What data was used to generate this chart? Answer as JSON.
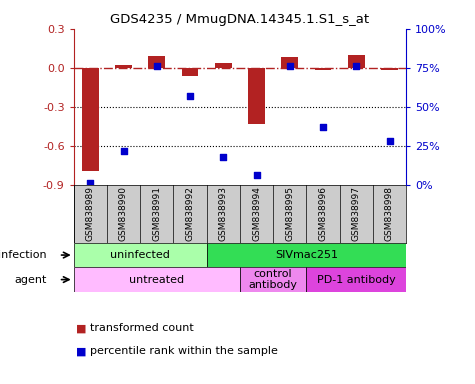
{
  "title": "GDS4235 / MmugDNA.14345.1.S1_s_at",
  "samples": [
    "GSM838989",
    "GSM838990",
    "GSM838991",
    "GSM838992",
    "GSM838993",
    "GSM838994",
    "GSM838995",
    "GSM838996",
    "GSM838997",
    "GSM838998"
  ],
  "transformed_count": [
    -0.79,
    0.02,
    0.09,
    -0.06,
    0.04,
    -0.43,
    0.08,
    -0.02,
    0.1,
    -0.02
  ],
  "percentile_rank": [
    0.01,
    0.22,
    0.76,
    0.57,
    0.18,
    0.06,
    0.76,
    0.37,
    0.76,
    0.28
  ],
  "bar_color": "#b22222",
  "dot_color": "#0000cc",
  "ylim_left": [
    -0.9,
    0.3
  ],
  "ylim_right": [
    0,
    100
  ],
  "yticks_left": [
    -0.9,
    -0.6,
    -0.3,
    0.0,
    0.3
  ],
  "yticks_right": [
    0,
    25,
    50,
    75,
    100
  ],
  "yticklabels_right": [
    "0%",
    "25%",
    "50%",
    "75%",
    "100%"
  ],
  "hline_y": 0.0,
  "dotted_lines": [
    -0.3,
    -0.6
  ],
  "infection_groups": [
    {
      "label": "uninfected",
      "start": 0,
      "end": 4,
      "color": "#aaffaa"
    },
    {
      "label": "SIVmac251",
      "start": 4,
      "end": 10,
      "color": "#33dd55"
    }
  ],
  "agent_groups": [
    {
      "label": "untreated",
      "start": 0,
      "end": 5,
      "color": "#ffbbff"
    },
    {
      "label": "control\nantibody",
      "start": 5,
      "end": 7,
      "color": "#ee88ee"
    },
    {
      "label": "PD-1 antibody",
      "start": 7,
      "end": 10,
      "color": "#dd44dd"
    }
  ],
  "legend_items": [
    {
      "label": "transformed count",
      "color": "#b22222"
    },
    {
      "label": "percentile rank within the sample",
      "color": "#0000cc"
    }
  ],
  "infection_label": "infection",
  "agent_label": "agent",
  "sample_bg_color": "#cccccc",
  "n_samples": 10
}
